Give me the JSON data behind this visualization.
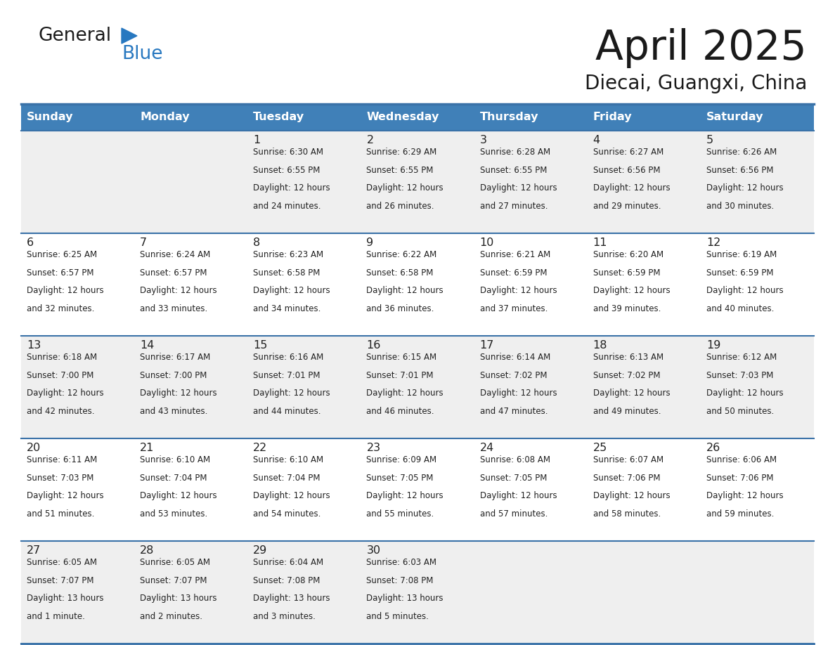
{
  "title": "April 2025",
  "subtitle": "Diecai, Guangxi, China",
  "days_of_week": [
    "Sunday",
    "Monday",
    "Tuesday",
    "Wednesday",
    "Thursday",
    "Friday",
    "Saturday"
  ],
  "header_bg": "#4080B8",
  "header_text": "#FFFFFF",
  "row_bg_odd": "#EFEFEF",
  "row_bg_even": "#FFFFFF",
  "border_color": "#3A72A8",
  "text_color": "#222222",
  "logo_text_color": "#1a1a1a",
  "logo_blue_color": "#2878C0",
  "calendar_data": [
    [
      {
        "day": "",
        "sunrise": "",
        "sunset": "",
        "daylight": ""
      },
      {
        "day": "",
        "sunrise": "",
        "sunset": "",
        "daylight": ""
      },
      {
        "day": "1",
        "sunrise": "Sunrise: 6:30 AM",
        "sunset": "Sunset: 6:55 PM",
        "daylight": "Daylight: 12 hours\nand 24 minutes."
      },
      {
        "day": "2",
        "sunrise": "Sunrise: 6:29 AM",
        "sunset": "Sunset: 6:55 PM",
        "daylight": "Daylight: 12 hours\nand 26 minutes."
      },
      {
        "day": "3",
        "sunrise": "Sunrise: 6:28 AM",
        "sunset": "Sunset: 6:55 PM",
        "daylight": "Daylight: 12 hours\nand 27 minutes."
      },
      {
        "day": "4",
        "sunrise": "Sunrise: 6:27 AM",
        "sunset": "Sunset: 6:56 PM",
        "daylight": "Daylight: 12 hours\nand 29 minutes."
      },
      {
        "day": "5",
        "sunrise": "Sunrise: 6:26 AM",
        "sunset": "Sunset: 6:56 PM",
        "daylight": "Daylight: 12 hours\nand 30 minutes."
      }
    ],
    [
      {
        "day": "6",
        "sunrise": "Sunrise: 6:25 AM",
        "sunset": "Sunset: 6:57 PM",
        "daylight": "Daylight: 12 hours\nand 32 minutes."
      },
      {
        "day": "7",
        "sunrise": "Sunrise: 6:24 AM",
        "sunset": "Sunset: 6:57 PM",
        "daylight": "Daylight: 12 hours\nand 33 minutes."
      },
      {
        "day": "8",
        "sunrise": "Sunrise: 6:23 AM",
        "sunset": "Sunset: 6:58 PM",
        "daylight": "Daylight: 12 hours\nand 34 minutes."
      },
      {
        "day": "9",
        "sunrise": "Sunrise: 6:22 AM",
        "sunset": "Sunset: 6:58 PM",
        "daylight": "Daylight: 12 hours\nand 36 minutes."
      },
      {
        "day": "10",
        "sunrise": "Sunrise: 6:21 AM",
        "sunset": "Sunset: 6:59 PM",
        "daylight": "Daylight: 12 hours\nand 37 minutes."
      },
      {
        "day": "11",
        "sunrise": "Sunrise: 6:20 AM",
        "sunset": "Sunset: 6:59 PM",
        "daylight": "Daylight: 12 hours\nand 39 minutes."
      },
      {
        "day": "12",
        "sunrise": "Sunrise: 6:19 AM",
        "sunset": "Sunset: 6:59 PM",
        "daylight": "Daylight: 12 hours\nand 40 minutes."
      }
    ],
    [
      {
        "day": "13",
        "sunrise": "Sunrise: 6:18 AM",
        "sunset": "Sunset: 7:00 PM",
        "daylight": "Daylight: 12 hours\nand 42 minutes."
      },
      {
        "day": "14",
        "sunrise": "Sunrise: 6:17 AM",
        "sunset": "Sunset: 7:00 PM",
        "daylight": "Daylight: 12 hours\nand 43 minutes."
      },
      {
        "day": "15",
        "sunrise": "Sunrise: 6:16 AM",
        "sunset": "Sunset: 7:01 PM",
        "daylight": "Daylight: 12 hours\nand 44 minutes."
      },
      {
        "day": "16",
        "sunrise": "Sunrise: 6:15 AM",
        "sunset": "Sunset: 7:01 PM",
        "daylight": "Daylight: 12 hours\nand 46 minutes."
      },
      {
        "day": "17",
        "sunrise": "Sunrise: 6:14 AM",
        "sunset": "Sunset: 7:02 PM",
        "daylight": "Daylight: 12 hours\nand 47 minutes."
      },
      {
        "day": "18",
        "sunrise": "Sunrise: 6:13 AM",
        "sunset": "Sunset: 7:02 PM",
        "daylight": "Daylight: 12 hours\nand 49 minutes."
      },
      {
        "day": "19",
        "sunrise": "Sunrise: 6:12 AM",
        "sunset": "Sunset: 7:03 PM",
        "daylight": "Daylight: 12 hours\nand 50 minutes."
      }
    ],
    [
      {
        "day": "20",
        "sunrise": "Sunrise: 6:11 AM",
        "sunset": "Sunset: 7:03 PM",
        "daylight": "Daylight: 12 hours\nand 51 minutes."
      },
      {
        "day": "21",
        "sunrise": "Sunrise: 6:10 AM",
        "sunset": "Sunset: 7:04 PM",
        "daylight": "Daylight: 12 hours\nand 53 minutes."
      },
      {
        "day": "22",
        "sunrise": "Sunrise: 6:10 AM",
        "sunset": "Sunset: 7:04 PM",
        "daylight": "Daylight: 12 hours\nand 54 minutes."
      },
      {
        "day": "23",
        "sunrise": "Sunrise: 6:09 AM",
        "sunset": "Sunset: 7:05 PM",
        "daylight": "Daylight: 12 hours\nand 55 minutes."
      },
      {
        "day": "24",
        "sunrise": "Sunrise: 6:08 AM",
        "sunset": "Sunset: 7:05 PM",
        "daylight": "Daylight: 12 hours\nand 57 minutes."
      },
      {
        "day": "25",
        "sunrise": "Sunrise: 6:07 AM",
        "sunset": "Sunset: 7:06 PM",
        "daylight": "Daylight: 12 hours\nand 58 minutes."
      },
      {
        "day": "26",
        "sunrise": "Sunrise: 6:06 AM",
        "sunset": "Sunset: 7:06 PM",
        "daylight": "Daylight: 12 hours\nand 59 minutes."
      }
    ],
    [
      {
        "day": "27",
        "sunrise": "Sunrise: 6:05 AM",
        "sunset": "Sunset: 7:07 PM",
        "daylight": "Daylight: 13 hours\nand 1 minute."
      },
      {
        "day": "28",
        "sunrise": "Sunrise: 6:05 AM",
        "sunset": "Sunset: 7:07 PM",
        "daylight": "Daylight: 13 hours\nand 2 minutes."
      },
      {
        "day": "29",
        "sunrise": "Sunrise: 6:04 AM",
        "sunset": "Sunset: 7:08 PM",
        "daylight": "Daylight: 13 hours\nand 3 minutes."
      },
      {
        "day": "30",
        "sunrise": "Sunrise: 6:03 AM",
        "sunset": "Sunset: 7:08 PM",
        "daylight": "Daylight: 13 hours\nand 5 minutes."
      },
      {
        "day": "",
        "sunrise": "",
        "sunset": "",
        "daylight": ""
      },
      {
        "day": "",
        "sunrise": "",
        "sunset": "",
        "daylight": ""
      },
      {
        "day": "",
        "sunrise": "",
        "sunset": "",
        "daylight": ""
      }
    ]
  ]
}
